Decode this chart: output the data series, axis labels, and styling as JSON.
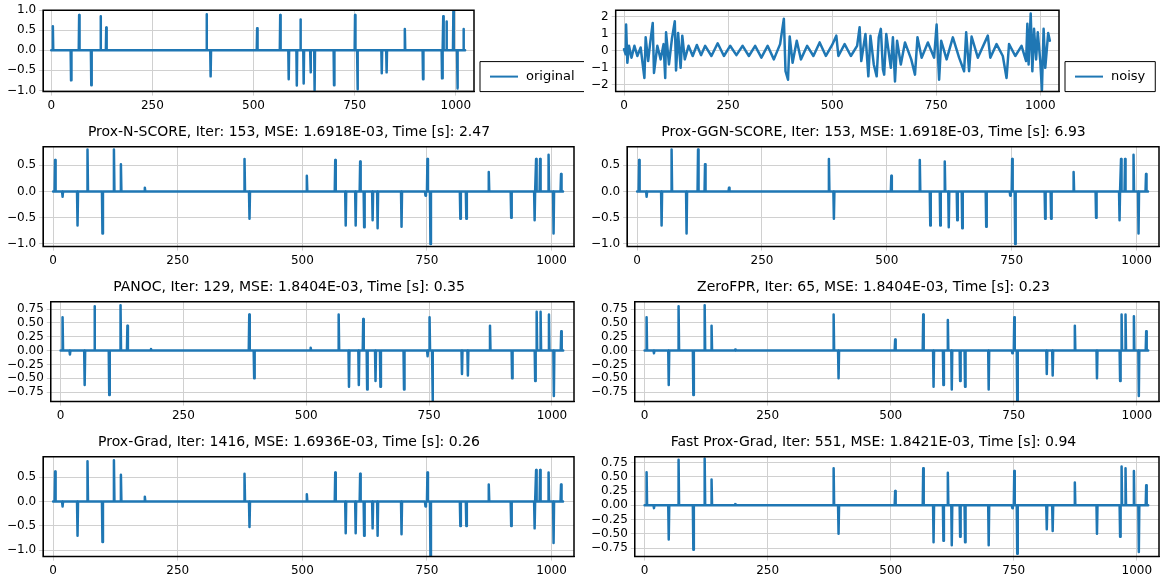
{
  "chart_data": [
    {
      "type": "line",
      "xlim": [
        -20,
        1045
      ],
      "ylim": [
        -1.03,
        1.0
      ],
      "xticks": [
        0,
        250,
        500,
        750,
        1000
      ],
      "yticks": [
        {
          "value": -1,
          "label": "−1.0"
        },
        {
          "value": -0.5,
          "label": "−0.5"
        },
        {
          "value": 0,
          "label": "0.0"
        },
        {
          "value": 0.5,
          "label": "0.5"
        },
        {
          "value": 1,
          "label": "1.0"
        }
      ],
      "grid": true,
      "legend": "bottom right",
      "x": [
        0,
        3,
        4,
        5,
        48,
        49,
        50,
        68,
        69,
        70,
        98,
        99,
        100,
        121,
        122,
        123,
        135,
        136,
        137,
        383,
        384,
        385,
        393,
        394,
        395,
        508,
        509,
        510,
        565,
        566,
        567,
        586,
        587,
        588,
        606,
        607,
        608,
        615,
        616,
        617,
        623,
        624,
        625,
        640,
        641,
        642,
        650,
        651,
        652,
        698,
        699,
        700,
        750,
        751,
        752,
        756,
        757,
        758,
        816,
        817,
        818,
        828,
        829,
        830,
        873,
        874,
        875,
        918,
        919,
        920,
        965,
        966,
        967,
        968,
        969,
        970,
        976,
        977,
        978,
        993,
        994,
        995,
        1003,
        1004,
        1005,
        1018,
        1019,
        1020,
        1023
      ],
      "series": [
        {
          "name": "original",
          "color": "#1f77b4",
          "values": [
            0,
            0,
            0.6,
            0,
            0,
            -0.75,
            0,
            0,
            0.88,
            0,
            0,
            -0.87,
            0,
            0,
            0.85,
            0,
            0,
            0.57,
            0,
            0,
            0.9,
            0,
            0,
            -0.65,
            0,
            0,
            0.55,
            0,
            0,
            0.88,
            0,
            0,
            -0.72,
            0,
            0,
            -0.88,
            0,
            0,
            0.77,
            0,
            0,
            -0.83,
            0,
            0,
            -0.55,
            0,
            0,
            -1.0,
            0,
            0,
            -0.87,
            0,
            0,
            0.88,
            0,
            0,
            -0.97,
            0,
            0,
            -0.57,
            0,
            0,
            -0.55,
            0,
            0,
            0.53,
            0,
            0,
            -0.72,
            0,
            0,
            -0.7,
            0,
            0,
            0.85,
            0,
            0,
            0.72,
            0,
            0,
            0.97,
            0,
            0,
            -0.95,
            0,
            0,
            0.53,
            0,
            0
          ]
        }
      ]
    },
    {
      "type": "line",
      "xlim": [
        -20,
        1045
      ],
      "ylim": [
        -2.4,
        2.4
      ],
      "xticks": [
        0,
        250,
        500,
        750,
        1000
      ],
      "yticks": [
        {
          "value": -2,
          "label": "−2"
        },
        {
          "value": -1,
          "label": "−1"
        },
        {
          "value": 0,
          "label": "0"
        },
        {
          "value": 1,
          "label": "1"
        },
        {
          "value": 2,
          "label": "2"
        }
      ],
      "grid": true,
      "legend": "bottom right",
      "x": [
        0,
        4,
        5,
        8,
        12,
        18,
        25,
        32,
        40,
        49,
        52,
        58,
        63,
        69,
        72,
        80,
        88,
        95,
        99,
        101,
        108,
        115,
        122,
        125,
        130,
        136,
        140,
        146,
        155,
        165,
        175,
        185,
        195,
        210,
        225,
        240,
        255,
        270,
        285,
        300,
        315,
        330,
        345,
        360,
        375,
        384,
        388,
        394,
        398,
        405,
        415,
        425,
        440,
        455,
        470,
        485,
        500,
        510,
        515,
        530,
        545,
        560,
        566,
        570,
        580,
        587,
        592,
        600,
        607,
        612,
        617,
        622,
        625,
        630,
        641,
        646,
        651,
        656,
        665,
        675,
        690,
        699,
        705,
        715,
        730,
        745,
        751,
        755,
        757,
        762,
        775,
        790,
        805,
        817,
        822,
        829,
        835,
        850,
        874,
        880,
        895,
        910,
        919,
        925,
        940,
        955,
        966,
        969,
        972,
        977,
        981,
        985,
        990,
        994,
        1000,
        1004,
        1008,
        1012,
        1019,
        1023
      ],
      "series": [
        {
          "name": "noisy",
          "color": "#1f77b4",
          "values": [
            0.1,
            -0.2,
            1.55,
            -0.7,
            0.3,
            -0.4,
            0.3,
            -0.3,
            0.2,
            -1.6,
            0.8,
            -0.6,
            0.5,
            1.65,
            -1.3,
            0.3,
            -0.5,
            0.4,
            -1.6,
            1.1,
            -0.8,
            0.7,
            1.75,
            -1.15,
            1.05,
            -1.0,
            0.9,
            -0.5,
            0.3,
            -0.3,
            0.35,
            -0.25,
            0.3,
            -0.3,
            0.45,
            -0.3,
            0.3,
            -0.25,
            0.3,
            -0.3,
            0.3,
            -0.4,
            0.3,
            -0.5,
            0.4,
            1.9,
            -1.2,
            -1.7,
            0.85,
            -0.7,
            0.6,
            -0.5,
            0.3,
            -0.3,
            0.5,
            -0.3,
            0.35,
            0.9,
            -0.3,
            0.4,
            -0.3,
            0.3,
            1.4,
            -0.6,
            1.0,
            -1.5,
            0.9,
            -0.8,
            -1.5,
            0.8,
            1.3,
            -1.1,
            -1.4,
            1.0,
            -1.0,
            0.8,
            -1.8,
            0.6,
            -0.8,
            0.5,
            -0.5,
            -1.4,
            0.8,
            -0.4,
            0.5,
            -0.4,
            1.55,
            -0.7,
            -1.7,
            0.6,
            -0.5,
            0.8,
            -0.4,
            -1.2,
            1.1,
            -1.2,
            0.85,
            -0.4,
            0.9,
            -0.4,
            0.4,
            -0.3,
            -1.6,
            0.4,
            -0.3,
            0.3,
            -0.6,
            1.6,
            -0.8,
            2.2,
            -1.2,
            1.3,
            -0.5,
            1.1,
            -0.6,
            -2.3,
            1.3,
            -1.0,
            1.05,
            0.6
          ]
        }
      ]
    },
    {
      "type": "line",
      "title": "Prox-N-SCORE, Iter: 153, MSE: 1.6918E-03, Time [s]: 2.47",
      "xlim": [
        -20,
        1045
      ],
      "ylim": [
        -1.05,
        0.85
      ],
      "xticks": [
        0,
        250,
        500,
        750,
        1000
      ],
      "yticks": [
        {
          "value": -1,
          "label": "−1.0"
        },
        {
          "value": -0.5,
          "label": "−0.5"
        },
        {
          "value": 0,
          "label": "0.0"
        },
        {
          "value": 0.5,
          "label": "0.5"
        }
      ],
      "grid": true,
      "x": [
        0,
        3,
        4,
        5,
        18,
        19,
        20,
        48,
        49,
        50,
        68,
        69,
        70,
        98,
        99,
        100,
        121,
        122,
        123,
        135,
        136,
        137,
        183,
        184,
        185,
        383,
        384,
        385,
        393,
        394,
        395,
        508,
        509,
        510,
        565,
        566,
        567,
        586,
        587,
        588,
        606,
        607,
        608,
        615,
        616,
        617,
        623,
        624,
        625,
        640,
        641,
        642,
        650,
        651,
        652,
        698,
        699,
        700,
        746,
        747,
        748,
        750,
        751,
        752,
        756,
        757,
        758,
        816,
        817,
        818,
        828,
        829,
        830,
        873,
        874,
        875,
        918,
        919,
        920,
        965,
        966,
        967,
        968,
        969,
        970,
        976,
        977,
        978,
        993,
        994,
        995,
        1003,
        1004,
        1005,
        1018,
        1019,
        1020,
        1023
      ],
      "series": [
        {
          "color": "#1f77b4",
          "values": [
            0,
            0,
            0.6,
            0,
            0,
            -0.1,
            0,
            0,
            -0.65,
            0,
            0,
            0.8,
            0,
            0,
            -0.8,
            0,
            0,
            0.8,
            0,
            0,
            0.52,
            0,
            0,
            0.07,
            0,
            0,
            0.62,
            0,
            0,
            -0.52,
            0,
            0,
            0.3,
            0,
            0,
            0.6,
            0,
            0,
            -0.65,
            0,
            0,
            -0.65,
            0,
            0,
            0.57,
            0,
            0,
            -0.68,
            0,
            0,
            -0.55,
            0,
            0,
            -0.7,
            0,
            0,
            -0.67,
            0,
            0,
            -0.08,
            0,
            0,
            0.62,
            0,
            0,
            -1.0,
            0,
            0,
            -0.52,
            0,
            0,
            -0.52,
            0,
            0,
            0.37,
            0,
            0,
            -0.5,
            0,
            0,
            -0.55,
            0,
            0,
            0.62,
            0,
            0,
            0.62,
            0,
            0,
            0.7,
            0,
            0,
            -0.8,
            0,
            0,
            0.33,
            0,
            0
          ]
        }
      ]
    },
    {
      "type": "line",
      "title": "Prox-GGN-SCORE, Iter: 153, MSE: 1.6918E-03, Time [s]: 6.93",
      "xlim": [
        -20,
        1045
      ],
      "ylim": [
        -1.05,
        0.85
      ],
      "xticks": [
        0,
        250,
        500,
        750,
        1000
      ],
      "yticks": [
        {
          "value": -1,
          "label": "−1.0"
        },
        {
          "value": -0.5,
          "label": "−0.5"
        },
        {
          "value": 0,
          "label": "0.0"
        },
        {
          "value": 0.5,
          "label": "0.5"
        }
      ],
      "grid": true,
      "x": [
        0,
        3,
        4,
        5,
        18,
        19,
        20,
        48,
        49,
        50,
        68,
        69,
        70,
        98,
        99,
        100,
        121,
        122,
        123,
        135,
        136,
        137,
        183,
        184,
        185,
        383,
        384,
        385,
        393,
        394,
        395,
        508,
        509,
        510,
        565,
        566,
        567,
        586,
        587,
        588,
        606,
        607,
        608,
        615,
        616,
        617,
        623,
        624,
        625,
        640,
        641,
        642,
        650,
        651,
        652,
        698,
        699,
        700,
        746,
        747,
        748,
        750,
        751,
        752,
        756,
        757,
        758,
        816,
        817,
        818,
        828,
        829,
        830,
        873,
        874,
        875,
        918,
        919,
        920,
        965,
        966,
        967,
        968,
        969,
        970,
        976,
        977,
        978,
        993,
        994,
        995,
        1003,
        1004,
        1005,
        1018,
        1019,
        1020,
        1023
      ],
      "series": [
        {
          "color": "#1f77b4",
          "values": [
            0,
            0,
            0.6,
            0,
            0,
            -0.1,
            0,
            0,
            -0.65,
            0,
            0,
            0.8,
            0,
            0,
            -0.8,
            0,
            0,
            0.8,
            0,
            0,
            0.52,
            0,
            0,
            0.07,
            0,
            0,
            0.62,
            0,
            0,
            -0.52,
            0,
            0,
            0.3,
            0,
            0,
            0.6,
            0,
            0,
            -0.65,
            0,
            0,
            -0.65,
            0,
            0,
            0.57,
            0,
            0,
            -0.68,
            0,
            0,
            -0.55,
            0,
            0,
            -0.7,
            0,
            0,
            -0.67,
            0,
            0,
            -0.08,
            0,
            0,
            0.62,
            0,
            0,
            -1.0,
            0,
            0,
            -0.52,
            0,
            0,
            -0.52,
            0,
            0,
            0.37,
            0,
            0,
            -0.5,
            0,
            0,
            -0.55,
            0,
            0,
            0.62,
            0,
            0,
            0.62,
            0,
            0,
            0.7,
            0,
            0,
            -0.8,
            0,
            0,
            0.33,
            0,
            0
          ]
        }
      ]
    },
    {
      "type": "line",
      "title": "PANOC, Iter: 129, MSE: 1.8404E-03, Time [s]: 0.35",
      "xlim": [
        -20,
        1045
      ],
      "ylim": [
        -0.92,
        0.88
      ],
      "xticks": [
        0,
        250,
        500,
        750,
        1000
      ],
      "yticks": [
        {
          "value": -0.75,
          "label": "−0.75"
        },
        {
          "value": -0.5,
          "label": "−0.50"
        },
        {
          "value": -0.25,
          "label": "−0.25"
        },
        {
          "value": 0,
          "label": "0.00"
        },
        {
          "value": 0.25,
          "label": "0.25"
        },
        {
          "value": 0.5,
          "label": "0.50"
        },
        {
          "value": 0.75,
          "label": "0.75"
        }
      ],
      "grid": true,
      "x": [
        0,
        3,
        4,
        5,
        18,
        19,
        20,
        48,
        49,
        50,
        68,
        69,
        70,
        98,
        99,
        100,
        121,
        122,
        123,
        135,
        136,
        137,
        183,
        184,
        185,
        383,
        384,
        385,
        393,
        394,
        395,
        508,
        509,
        510,
        565,
        566,
        567,
        586,
        587,
        588,
        606,
        607,
        608,
        615,
        616,
        617,
        623,
        624,
        625,
        640,
        641,
        642,
        650,
        651,
        652,
        698,
        699,
        700,
        746,
        747,
        748,
        750,
        751,
        752,
        756,
        757,
        758,
        816,
        817,
        818,
        828,
        829,
        830,
        873,
        874,
        875,
        918,
        919,
        920,
        965,
        966,
        967,
        968,
        969,
        970,
        976,
        977,
        978,
        993,
        994,
        995,
        1003,
        1004,
        1005,
        1018,
        1019,
        1020,
        1023
      ],
      "series": [
        {
          "color": "#1f77b4",
          "values": [
            0,
            0,
            0.6,
            0,
            0,
            -0.07,
            0,
            0,
            -0.62,
            0,
            0,
            0.8,
            0,
            0,
            -0.8,
            0,
            0,
            0.82,
            0,
            0,
            0.45,
            0,
            0,
            0.03,
            0,
            0,
            0.65,
            0,
            0,
            -0.5,
            0,
            0,
            0.05,
            0,
            0,
            0.65,
            0,
            0,
            -0.65,
            0,
            0,
            -0.62,
            0,
            0,
            0.57,
            0,
            0,
            -0.7,
            0,
            0,
            -0.55,
            0,
            0,
            -0.65,
            0,
            0,
            -0.7,
            0,
            0,
            -0.1,
            0,
            0,
            0.6,
            0,
            0,
            -0.9,
            0,
            0,
            -0.42,
            0,
            0,
            -0.45,
            0,
            0,
            0.45,
            0,
            0,
            -0.5,
            0,
            0,
            -0.55,
            0,
            0,
            0.7,
            0,
            0,
            0.7,
            0,
            0,
            0.65,
            0,
            0,
            -0.82,
            0,
            0,
            0.35,
            0,
            0
          ]
        }
      ]
    },
    {
      "type": "line",
      "title": "ZeroFPR, Iter: 65, MSE: 1.8404E-03, Time [s]: 0.23",
      "xlim": [
        -20,
        1045
      ],
      "ylim": [
        -0.92,
        0.88
      ],
      "xticks": [
        0,
        250,
        500,
        750,
        1000
      ],
      "yticks": [
        {
          "value": -0.75,
          "label": "−0.75"
        },
        {
          "value": -0.5,
          "label": "−0.50"
        },
        {
          "value": -0.25,
          "label": "−0.25"
        },
        {
          "value": 0,
          "label": "0.00"
        },
        {
          "value": 0.25,
          "label": "0.25"
        },
        {
          "value": 0.5,
          "label": "0.50"
        },
        {
          "value": 0.75,
          "label": "0.75"
        }
      ],
      "grid": true,
      "x": [
        0,
        3,
        4,
        5,
        18,
        19,
        20,
        48,
        49,
        50,
        68,
        69,
        70,
        98,
        99,
        100,
        121,
        122,
        123,
        135,
        136,
        137,
        183,
        184,
        185,
        383,
        384,
        385,
        393,
        394,
        395,
        508,
        509,
        510,
        565,
        566,
        567,
        586,
        587,
        588,
        606,
        607,
        608,
        615,
        616,
        617,
        623,
        624,
        625,
        640,
        641,
        642,
        650,
        651,
        652,
        698,
        699,
        700,
        746,
        747,
        748,
        750,
        751,
        752,
        756,
        757,
        758,
        816,
        817,
        818,
        828,
        829,
        830,
        873,
        874,
        875,
        918,
        919,
        920,
        965,
        966,
        967,
        968,
        969,
        970,
        976,
        977,
        978,
        993,
        994,
        995,
        1003,
        1004,
        1005,
        1018,
        1019,
        1020,
        1023
      ],
      "series": [
        {
          "color": "#1f77b4",
          "values": [
            0,
            0,
            0.6,
            0,
            0,
            -0.05,
            0,
            0,
            -0.62,
            0,
            0,
            0.8,
            0,
            0,
            -0.8,
            0,
            0,
            0.82,
            0,
            0,
            0.45,
            0,
            0,
            0.02,
            0,
            0,
            0.65,
            0,
            0,
            -0.5,
            0,
            0,
            0.2,
            0,
            0,
            0.65,
            0,
            0,
            -0.65,
            0,
            0,
            -0.62,
            0,
            0,
            0.55,
            0,
            0,
            -0.7,
            0,
            0,
            -0.55,
            0,
            0,
            -0.65,
            0,
            0,
            -0.7,
            0,
            0,
            -0.05,
            0,
            0,
            0.6,
            0,
            0,
            -0.9,
            0,
            0,
            -0.42,
            0,
            0,
            -0.45,
            0,
            0,
            0.45,
            0,
            0,
            -0.5,
            0,
            0,
            -0.55,
            0,
            0,
            0.65,
            0,
            0,
            0.65,
            0,
            0,
            0.62,
            0,
            0,
            -0.82,
            0,
            0,
            0.35,
            0,
            0
          ]
        }
      ]
    },
    {
      "type": "line",
      "title": "Prox-Grad, Iter: 1416, MSE: 1.6936E-03, Time [s]: 0.26",
      "xlim": [
        -20,
        1045
      ],
      "ylim": [
        -1.13,
        0.92
      ],
      "xticks": [
        0,
        250,
        500,
        750,
        1000
      ],
      "yticks": [
        {
          "value": -1,
          "label": "−1.0"
        },
        {
          "value": -0.5,
          "label": "−0.5"
        },
        {
          "value": 0,
          "label": "0.0"
        },
        {
          "value": 0.5,
          "label": "0.5"
        }
      ],
      "grid": true,
      "x": [
        0,
        3,
        4,
        5,
        18,
        19,
        20,
        48,
        49,
        50,
        68,
        69,
        70,
        98,
        99,
        100,
        121,
        122,
        123,
        135,
        136,
        137,
        183,
        184,
        185,
        383,
        384,
        385,
        393,
        394,
        395,
        508,
        509,
        510,
        565,
        566,
        567,
        586,
        587,
        588,
        606,
        607,
        608,
        615,
        616,
        617,
        623,
        624,
        625,
        640,
        641,
        642,
        650,
        651,
        652,
        698,
        699,
        700,
        746,
        747,
        748,
        750,
        751,
        752,
        756,
        757,
        758,
        816,
        817,
        818,
        828,
        829,
        830,
        873,
        874,
        875,
        918,
        919,
        920,
        965,
        966,
        967,
        968,
        969,
        970,
        976,
        977,
        978,
        993,
        994,
        995,
        1003,
        1004,
        1005,
        1018,
        1019,
        1020,
        1023
      ],
      "series": [
        {
          "color": "#1f77b4",
          "values": [
            0,
            0,
            0.62,
            0,
            0,
            -0.1,
            0,
            0,
            -0.7,
            0,
            0,
            0.83,
            0,
            0,
            -0.83,
            0,
            0,
            0.85,
            0,
            0,
            0.55,
            0,
            0,
            0.1,
            0,
            0,
            0.57,
            0,
            0,
            -0.52,
            0,
            0,
            0.15,
            0,
            0,
            0.6,
            0,
            0,
            -0.65,
            0,
            0,
            -0.65,
            0,
            0,
            0.57,
            0,
            0,
            -0.7,
            0,
            0,
            -0.55,
            0,
            0,
            -0.7,
            0,
            0,
            -0.67,
            0,
            0,
            -0.1,
            0,
            0,
            0.6,
            0,
            0,
            -1.12,
            0,
            0,
            -0.5,
            0,
            0,
            -0.5,
            0,
            0,
            0.35,
            0,
            0,
            -0.5,
            0,
            0,
            -0.55,
            0,
            0,
            0.65,
            0,
            0,
            0.65,
            0,
            0,
            0.6,
            0,
            0,
            -0.85,
            0,
            0,
            0.35,
            0,
            0
          ]
        }
      ]
    },
    {
      "type": "line",
      "title": "Fast Prox-Grad, Iter: 551, MSE: 1.8421E-03, Time [s]: 0.94",
      "xlim": [
        -20,
        1045
      ],
      "ylim": [
        -0.9,
        0.85
      ],
      "xticks": [
        0,
        250,
        500,
        750,
        1000
      ],
      "yticks": [
        {
          "value": -0.75,
          "label": "−0.75"
        },
        {
          "value": -0.5,
          "label": "−0.50"
        },
        {
          "value": -0.25,
          "label": "−0.25"
        },
        {
          "value": 0,
          "label": "0.00"
        },
        {
          "value": 0.25,
          "label": "0.25"
        },
        {
          "value": 0.5,
          "label": "0.50"
        },
        {
          "value": 0.75,
          "label": "0.75"
        }
      ],
      "grid": true,
      "x": [
        0,
        3,
        4,
        5,
        18,
        19,
        20,
        48,
        49,
        50,
        68,
        69,
        70,
        98,
        99,
        100,
        121,
        122,
        123,
        135,
        136,
        137,
        183,
        184,
        185,
        383,
        384,
        385,
        393,
        394,
        395,
        508,
        509,
        510,
        565,
        566,
        567,
        586,
        587,
        588,
        606,
        607,
        608,
        615,
        616,
        617,
        623,
        624,
        625,
        640,
        641,
        642,
        650,
        651,
        652,
        698,
        699,
        700,
        746,
        747,
        748,
        750,
        751,
        752,
        756,
        757,
        758,
        816,
        817,
        818,
        828,
        829,
        830,
        873,
        874,
        875,
        918,
        919,
        920,
        965,
        966,
        967,
        968,
        969,
        970,
        976,
        977,
        978,
        993,
        994,
        995,
        1003,
        1004,
        1005,
        1018,
        1019,
        1020,
        1023
      ],
      "series": [
        {
          "color": "#1f77b4",
          "values": [
            0,
            0,
            0.58,
            0,
            0,
            -0.05,
            0,
            0,
            -0.6,
            0,
            0,
            0.8,
            0,
            0,
            -0.78,
            0,
            0,
            0.82,
            0,
            0,
            0.45,
            0,
            0,
            0.02,
            0,
            0,
            0.65,
            0,
            0,
            -0.5,
            0,
            0,
            0.25,
            0,
            0,
            0.65,
            0,
            0,
            -0.65,
            0,
            0,
            -0.62,
            0,
            0,
            0.57,
            0,
            0,
            -0.7,
            0,
            0,
            -0.55,
            0,
            0,
            -0.65,
            0,
            0,
            -0.7,
            0,
            0,
            -0.05,
            0,
            0,
            0.6,
            0,
            0,
            -0.85,
            0,
            0,
            -0.42,
            0,
            0,
            -0.45,
            0,
            0,
            0.4,
            0,
            0,
            -0.5,
            0,
            0,
            -0.55,
            0,
            0,
            0.68,
            0,
            0,
            0.65,
            0,
            0,
            0.6,
            0,
            0,
            -0.82,
            0,
            0,
            0.35,
            0,
            0
          ]
        }
      ]
    }
  ]
}
